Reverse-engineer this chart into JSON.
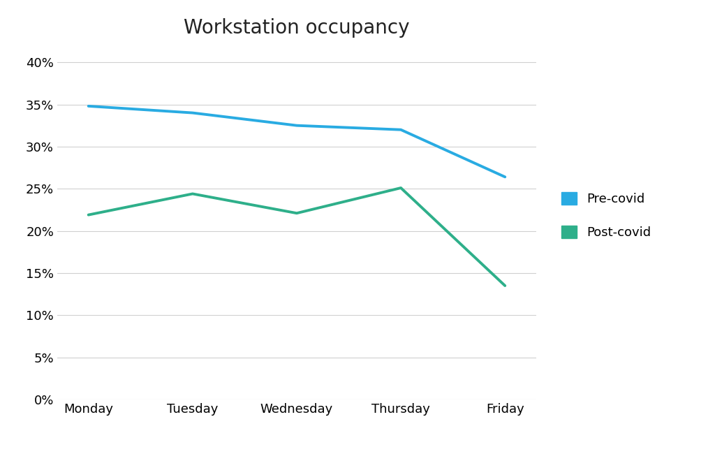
{
  "title": "Workstation occupancy",
  "categories": [
    "Monday",
    "Tuesday",
    "Wednesday",
    "Thursday",
    "Friday"
  ],
  "pre_covid": [
    0.348,
    0.34,
    0.325,
    0.32,
    0.264
  ],
  "post_covid": [
    0.219,
    0.244,
    0.221,
    0.251,
    0.135
  ],
  "pre_covid_color": "#29ABE2",
  "post_covid_color": "#2EAF8A",
  "ylim": [
    0,
    0.42
  ],
  "yticks": [
    0.0,
    0.05,
    0.1,
    0.15,
    0.2,
    0.25,
    0.3,
    0.35,
    0.4
  ],
  "legend_labels": [
    "Pre-covid",
    "Post-covid"
  ],
  "title_fontsize": 20,
  "tick_fontsize": 13,
  "legend_fontsize": 13,
  "linewidth": 2.8,
  "background_color": "#ffffff",
  "grid_color": "#d0d0d0"
}
